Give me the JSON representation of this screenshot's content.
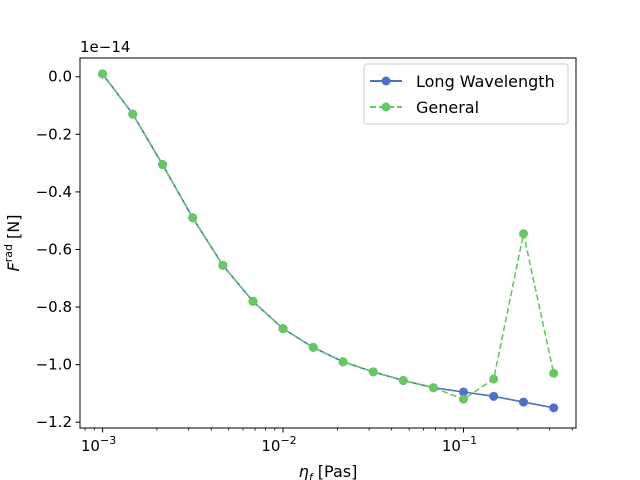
{
  "chart_data": {
    "type": "line",
    "xscale": "log",
    "xlim": [
      0.00075,
      0.42
    ],
    "ylim": [
      -1.22,
      0.065
    ],
    "offset_label": "1e−14",
    "x_ticks": [
      {
        "value": 0.001,
        "base": "10",
        "exp": "−3"
      },
      {
        "value": 0.01,
        "base": "10",
        "exp": "−2"
      },
      {
        "value": 0.1,
        "base": "10",
        "exp": "−1"
      }
    ],
    "y_ticks": [
      {
        "value": 0.0,
        "label": "0.0"
      },
      {
        "value": -0.2,
        "label": "−0.2"
      },
      {
        "value": -0.4,
        "label": "−0.4"
      },
      {
        "value": -0.6,
        "label": "−0.6"
      },
      {
        "value": -0.8,
        "label": "−0.8"
      },
      {
        "value": -1.0,
        "label": "−1.0"
      },
      {
        "value": -1.2,
        "label": "−1.2"
      }
    ],
    "xlabel": {
      "main": "η",
      "sub": "f",
      "unit": " [Pas]"
    },
    "ylabel": {
      "main": "F",
      "sup": "rad",
      "unit": " [N]"
    },
    "legend_position": "top-right",
    "grid": false,
    "x": [
      0.001,
      0.00147,
      0.00215,
      0.00316,
      0.00464,
      0.00681,
      0.01,
      0.0147,
      0.0215,
      0.0316,
      0.0464,
      0.0681,
      0.1,
      0.147,
      0.215,
      0.316
    ],
    "series": [
      {
        "name": "Long Wavelength",
        "color": "#4c72c8",
        "linestyle": "solid",
        "values": [
          0.01,
          -0.13,
          -0.305,
          -0.49,
          -0.655,
          -0.78,
          -0.875,
          -0.94,
          -0.99,
          -1.025,
          -1.055,
          -1.08,
          -1.095,
          -1.11,
          -1.13,
          -1.15
        ]
      },
      {
        "name": "General",
        "color": "#66c95f",
        "linestyle": "dashed",
        "values": [
          0.01,
          -0.13,
          -0.305,
          -0.49,
          -0.655,
          -0.78,
          -0.875,
          -0.94,
          -0.99,
          -1.025,
          -1.055,
          -1.08,
          -1.12,
          -1.05,
          -0.545,
          -1.03
        ]
      }
    ]
  }
}
